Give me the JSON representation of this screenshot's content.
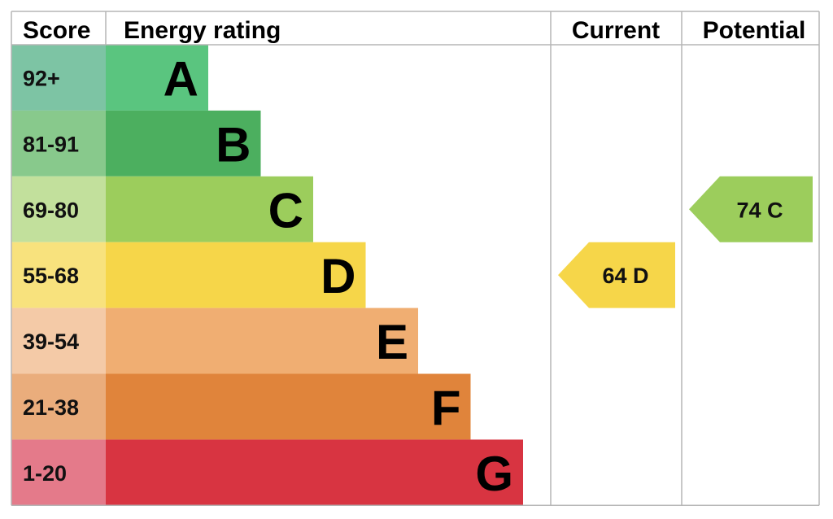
{
  "chart_data": {
    "type": "table",
    "headers": {
      "score": "Score",
      "rating": "Energy rating",
      "current": "Current",
      "potential": "Potential"
    },
    "bands": [
      {
        "score": "92+",
        "letter": "A",
        "color": "#5ac57f",
        "score_bg": "#7dc4a4"
      },
      {
        "score": "81-91",
        "letter": "B",
        "color": "#4caf5f",
        "score_bg": "#88c98c"
      },
      {
        "score": "69-80",
        "letter": "C",
        "color": "#9ccd5c",
        "score_bg": "#c2e09c"
      },
      {
        "score": "55-68",
        "letter": "D",
        "color": "#f6d649",
        "score_bg": "#f8e27d"
      },
      {
        "score": "39-54",
        "letter": "E",
        "color": "#f0ae72",
        "score_bg": "#f4caa7"
      },
      {
        "score": "21-38",
        "letter": "F",
        "color": "#e0843b",
        "score_bg": "#eaad7c"
      },
      {
        "score": "1-20",
        "letter": "G",
        "color": "#d83441",
        "score_bg": "#e47a8a"
      }
    ],
    "current": {
      "value": 64,
      "letter": "D",
      "label": "64  D",
      "color": "#f6d649"
    },
    "potential": {
      "value": 74,
      "letter": "C",
      "label": "74  C",
      "color": "#9ccd5c"
    }
  }
}
